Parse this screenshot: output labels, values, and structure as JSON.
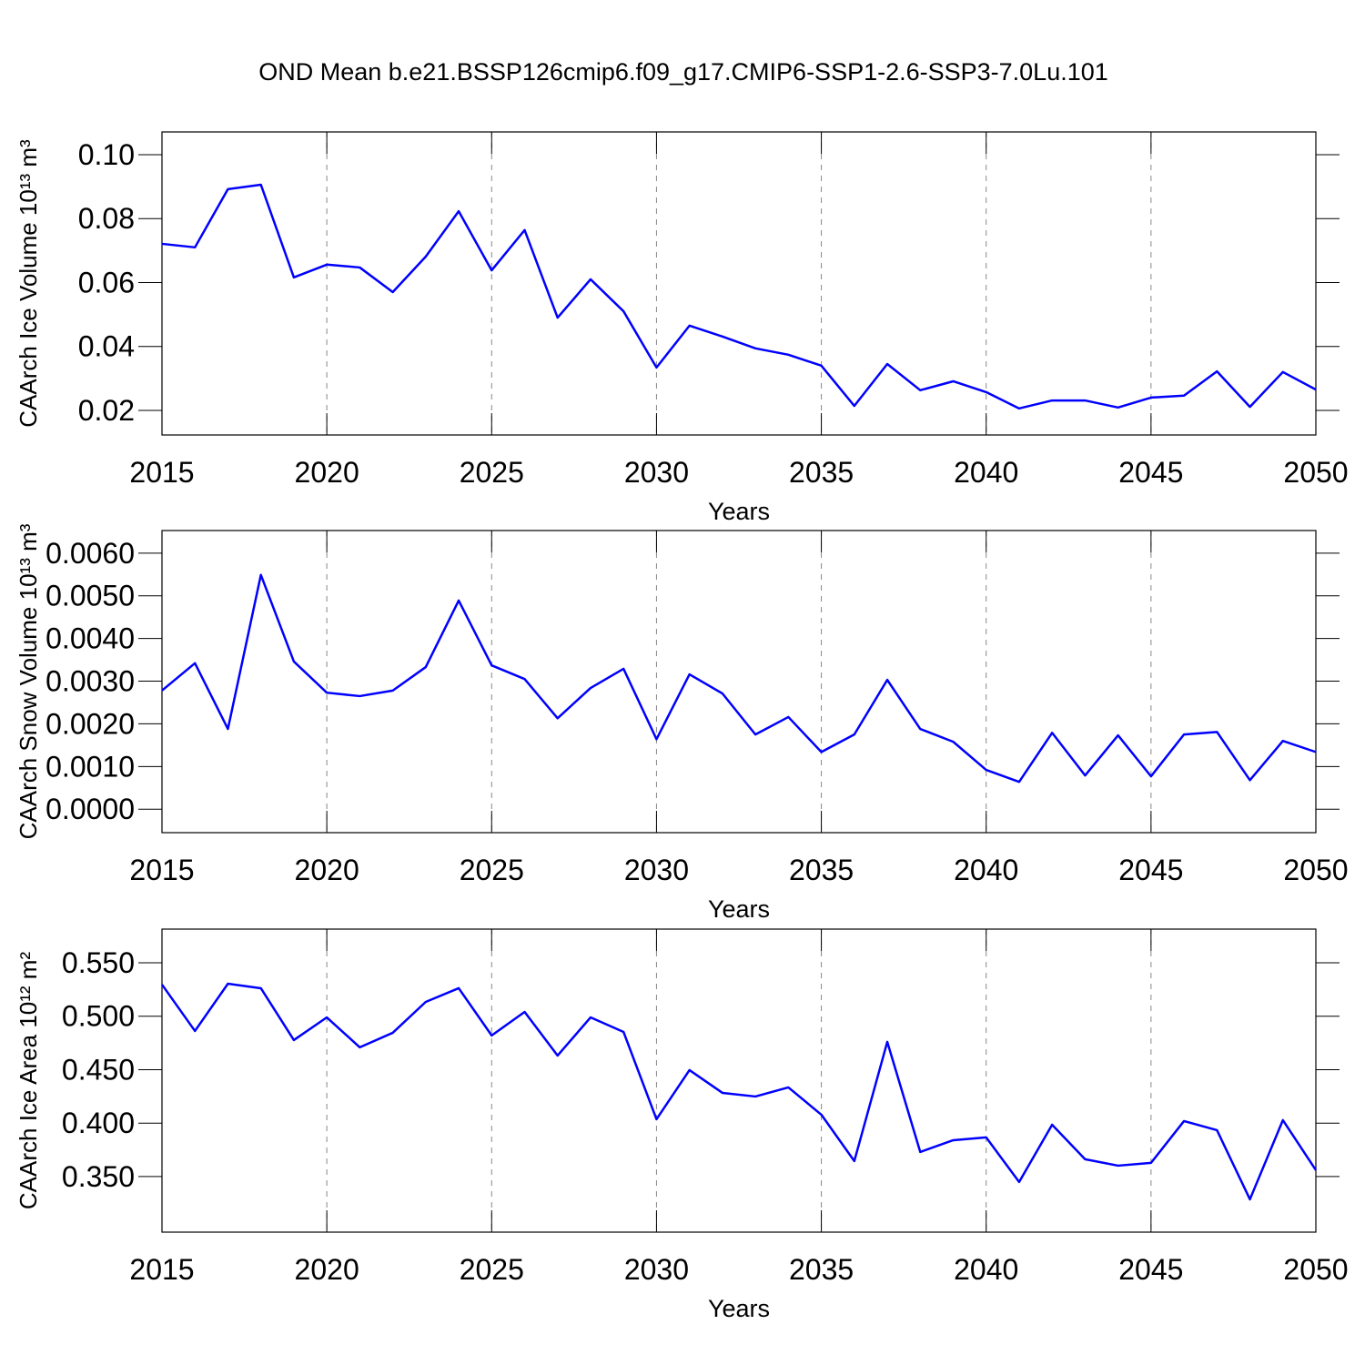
{
  "title": "OND Mean b.e21.BSSP126cmip6.f09_g17.CMIP6-SSP1-2.6-SSP3-7.0Lu.101",
  "chart_data": [
    {
      "type": "line",
      "ylabel": "CAArch Ice Volume 10¹³ m³",
      "xlabel": "Years",
      "color": "#0000ff",
      "grid": true,
      "x": [
        2015,
        2016,
        2017,
        2018,
        2019,
        2020,
        2021,
        2022,
        2023,
        2024,
        2025,
        2026,
        2027,
        2028,
        2029,
        2030,
        2031,
        2032,
        2033,
        2034,
        2035,
        2036,
        2037,
        2038,
        2039,
        2040,
        2041,
        2042,
        2043,
        2044,
        2045,
        2046,
        2047,
        2048,
        2049,
        2050
      ],
      "values": [
        0.0721,
        0.071,
        0.0892,
        0.0906,
        0.0616,
        0.0656,
        0.0647,
        0.057,
        0.0681,
        0.0823,
        0.0638,
        0.0764,
        0.049,
        0.061,
        0.051,
        0.0334,
        0.0465,
        0.0431,
        0.0394,
        0.0374,
        0.034,
        0.0214,
        0.0345,
        0.0263,
        0.0291,
        0.0257,
        0.0206,
        0.0231,
        0.0231,
        0.0209,
        0.024,
        0.0246,
        0.0322,
        0.0211,
        0.032,
        0.0265
      ],
      "xlim": [
        2015,
        2050
      ],
      "xticks": [
        2015,
        2020,
        2025,
        2030,
        2035,
        2040,
        2045,
        2050
      ],
      "ylim": [
        0.0123,
        0.1071
      ],
      "yticks": [
        0.02,
        0.04,
        0.06,
        0.08,
        {
          "value": 0.1,
          "label": "0.10"
        }
      ]
    },
    {
      "type": "line",
      "ylabel": "CAArch Snow Volume 10¹³ m³",
      "xlabel": "Years",
      "color": "#0000ff",
      "grid": true,
      "x": [
        2015,
        2016,
        2017,
        2018,
        2019,
        2020,
        2021,
        2022,
        2023,
        2024,
        2025,
        2026,
        2027,
        2028,
        2029,
        2030,
        2031,
        2032,
        2033,
        2034,
        2035,
        2036,
        2037,
        2038,
        2039,
        2040,
        2041,
        2042,
        2043,
        2044,
        2045,
        2046,
        2047,
        2048,
        2049,
        2050
      ],
      "values": [
        0.00278,
        0.00342,
        0.00188,
        0.00549,
        0.00346,
        0.00273,
        0.00265,
        0.00278,
        0.00333,
        0.00489,
        0.00337,
        0.00305,
        0.00213,
        0.00284,
        0.00329,
        0.00164,
        0.00316,
        0.00271,
        0.00175,
        0.00216,
        0.00134,
        0.00175,
        0.00303,
        0.00188,
        0.00158,
        0.00092,
        0.00064,
        0.00179,
        0.00079,
        0.00173,
        0.00077,
        0.00175,
        0.00181,
        0.00068,
        0.0016,
        0.00134
      ],
      "xlim": [
        2015,
        2050
      ],
      "xticks": [
        2015,
        2020,
        2025,
        2030,
        2035,
        2040,
        2045,
        2050
      ],
      "ylim": [
        -0.00055,
        0.00653
      ],
      "yticks": [
        {
          "value": 0,
          "label": "0.0000"
        },
        {
          "value": 0.001,
          "label": "0.0010"
        },
        {
          "value": 0.002,
          "label": "0.0020"
        },
        {
          "value": 0.003,
          "label": "0.0030"
        },
        {
          "value": 0.004,
          "label": "0.0040"
        },
        {
          "value": 0.005,
          "label": "0.0050"
        },
        {
          "value": 0.006,
          "label": "0.0060"
        }
      ]
    },
    {
      "type": "line",
      "ylabel": "CAArch Ice Area 10¹² m²",
      "xlabel": "Years",
      "color": "#0000ff",
      "grid": true,
      "x": [
        2015,
        2016,
        2017,
        2018,
        2019,
        2020,
        2021,
        2022,
        2023,
        2024,
        2025,
        2026,
        2027,
        2028,
        2029,
        2030,
        2031,
        2032,
        2033,
        2034,
        2035,
        2036,
        2037,
        2038,
        2039,
        2040,
        2041,
        2042,
        2043,
        2044,
        2045,
        2046,
        2047,
        2048,
        2049,
        2050
      ],
      "values": [
        0.5296,
        0.4862,
        0.5304,
        0.5262,
        0.4777,
        0.4989,
        0.4709,
        0.4845,
        0.5134,
        0.5262,
        0.482,
        0.504,
        0.4632,
        0.4989,
        0.4853,
        0.4036,
        0.4496,
        0.4283,
        0.4249,
        0.4334,
        0.4079,
        0.3645,
        0.476,
        0.373,
        0.384,
        0.3866,
        0.3449,
        0.3985,
        0.3662,
        0.3602,
        0.3628,
        0.4019,
        0.3934,
        0.3287,
        0.4028,
        0.356
      ],
      "xlim": [
        2015,
        2050
      ],
      "xticks": [
        2015,
        2020,
        2025,
        2030,
        2035,
        2040,
        2045,
        2050
      ],
      "ylim": [
        0.298,
        0.5815
      ],
      "yticks": [
        {
          "value": 0.35,
          "label": "0.350"
        },
        {
          "value": 0.4,
          "label": "0.400"
        },
        {
          "value": 0.45,
          "label": "0.450"
        },
        {
          "value": 0.5,
          "label": "0.500"
        },
        {
          "value": 0.55,
          "label": "0.550"
        }
      ]
    }
  ]
}
